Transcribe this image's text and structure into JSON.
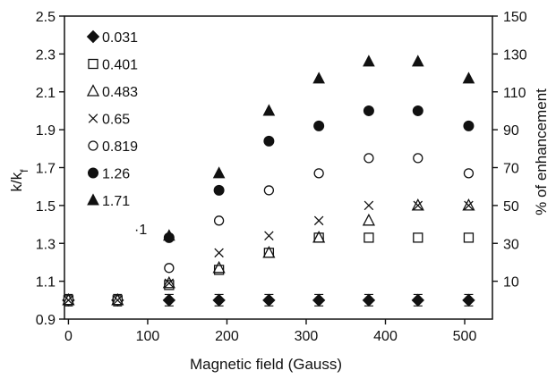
{
  "chart_data": {
    "type": "scatter",
    "xlabel": "Magnetic field (Gauss)",
    "ylabel": "k/kf",
    "ylabel_main": "k/k",
    "ylabel_sub": "f",
    "y2label": "% of enhancement",
    "xlim": [
      -5,
      535
    ],
    "ylim": [
      0.9,
      2.5
    ],
    "y2lim": [
      -10,
      150
    ],
    "x_ticks": [
      "0",
      "100",
      "200",
      "300",
      "400",
      "500"
    ],
    "y_ticks": [
      "0.9",
      "1.1",
      "1.3",
      "1.5",
      "1.7",
      "1.9",
      "2.1",
      "2.3",
      "2.5"
    ],
    "y2_ticks": [
      "10",
      "30",
      "50",
      "70",
      "90",
      "110",
      "130",
      "150"
    ],
    "grid": false,
    "legend_position": "top-left",
    "stray_annotation": "·1",
    "series": [
      {
        "name": "0.031",
        "marker": "diamond-filled",
        "x": [
          0,
          62,
          127,
          190,
          253,
          316,
          379,
          441,
          505
        ],
        "y": [
          1.0,
          1.0,
          1.0,
          1.0,
          1.0,
          1.0,
          1.0,
          1.0,
          1.0
        ],
        "err": [
          0.03,
          0.03,
          0.03,
          0.03,
          0.03,
          0.03,
          0.03,
          0.03,
          0.03
        ]
      },
      {
        "name": "0.401",
        "marker": "square-open",
        "x": [
          0,
          62,
          127,
          190,
          253,
          316,
          379,
          441,
          505
        ],
        "y": [
          1.0,
          1.0,
          1.08,
          1.16,
          1.25,
          1.33,
          1.33,
          1.33,
          1.33
        ]
      },
      {
        "name": "0.483",
        "marker": "triangle-open",
        "x": [
          0,
          62,
          127,
          190,
          253,
          316,
          379,
          441,
          505
        ],
        "y": [
          1.0,
          1.0,
          1.09,
          1.17,
          1.25,
          1.33,
          1.42,
          1.5,
          1.5
        ]
      },
      {
        "name": "0.65",
        "marker": "cross",
        "x": [
          0,
          62,
          127,
          190,
          253,
          316,
          379,
          441,
          505
        ],
        "y": [
          1.0,
          1.0,
          1.09,
          1.25,
          1.34,
          1.42,
          1.5,
          1.5,
          1.5
        ]
      },
      {
        "name": "0.819",
        "marker": "circle-open",
        "x": [
          127,
          190,
          253,
          316,
          379,
          441,
          505
        ],
        "y": [
          1.17,
          1.42,
          1.58,
          1.67,
          1.75,
          1.75,
          1.67
        ]
      },
      {
        "name": "1.26",
        "marker": "circle-filled",
        "x": [
          127,
          190,
          253,
          316,
          379,
          441,
          505
        ],
        "y": [
          1.33,
          1.58,
          1.84,
          1.92,
          2.0,
          2.0,
          1.92
        ]
      },
      {
        "name": "1.71",
        "marker": "triangle-filled",
        "x": [
          127,
          190,
          253,
          316,
          379,
          441,
          505
        ],
        "y": [
          1.34,
          1.67,
          2.0,
          2.17,
          2.26,
          2.26,
          2.17
        ]
      }
    ]
  }
}
